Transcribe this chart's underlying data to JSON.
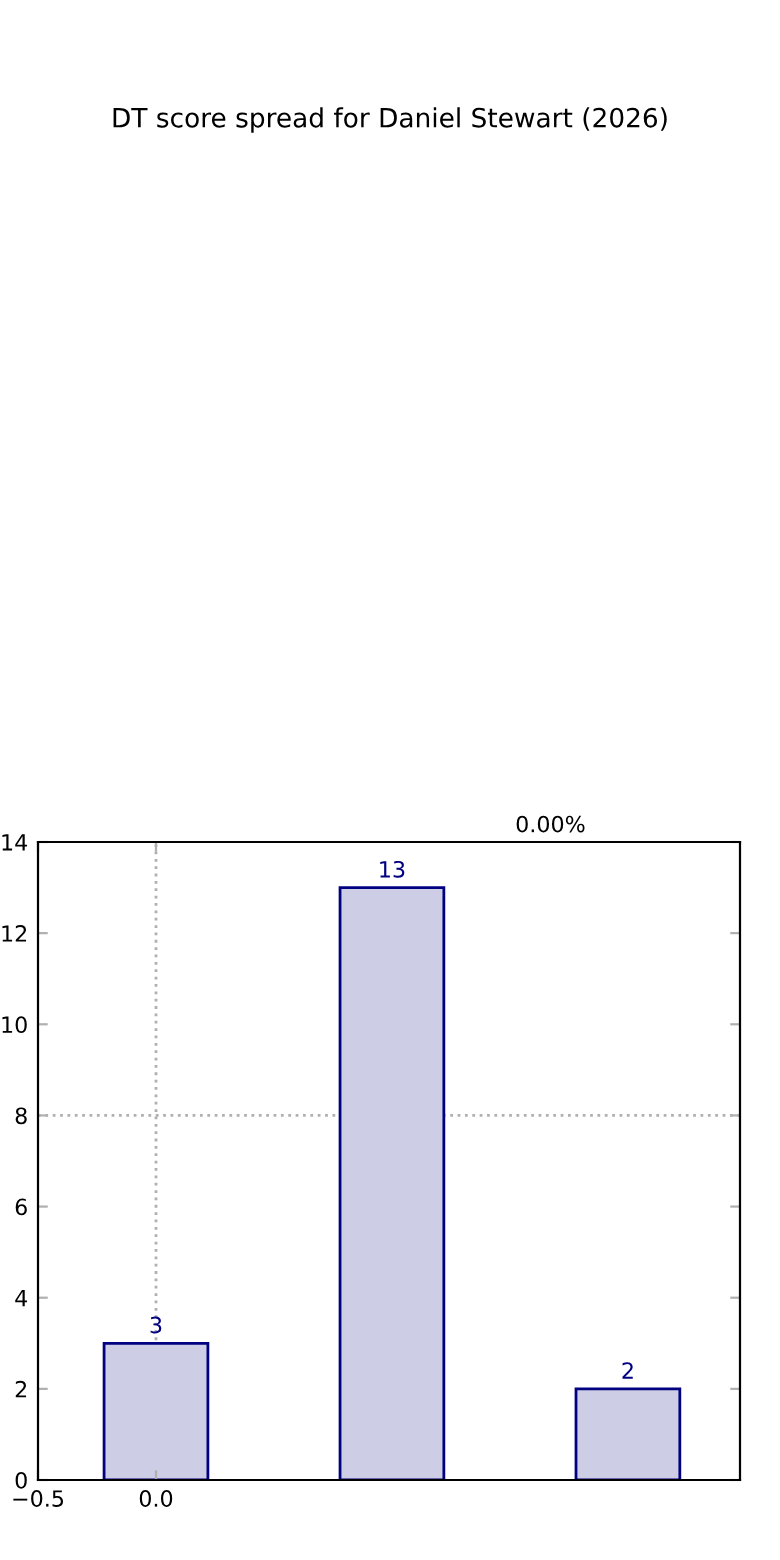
{
  "chart_data": {
    "type": "bar",
    "title": "DT score spread for Daniel Stewart (2026)",
    "x": [
      0,
      1,
      2
    ],
    "values": [
      3,
      13,
      2
    ],
    "color": "#cdcde6",
    "data_labels": true,
    "xlim": [
      -0.5,
      2.475
    ],
    "xticks": [
      {
        "value": -0.5,
        "label": "−0.5"
      },
      {
        "value": 0,
        "label": "0.0"
      }
    ],
    "ylim": [
      0,
      14
    ],
    "yticks": [
      0,
      2,
      4,
      6,
      8,
      10,
      12,
      14
    ],
    "ref_lines": [
      {
        "axis": "x",
        "value": 0,
        "color": "#b0b0b0",
        "line_style": "dotted"
      },
      {
        "axis": "y",
        "value": 8,
        "color": "#b0b0b0",
        "line_style": "dotted"
      }
    ],
    "annotations": [
      "0.00%"
    ],
    "grid": false
  }
}
